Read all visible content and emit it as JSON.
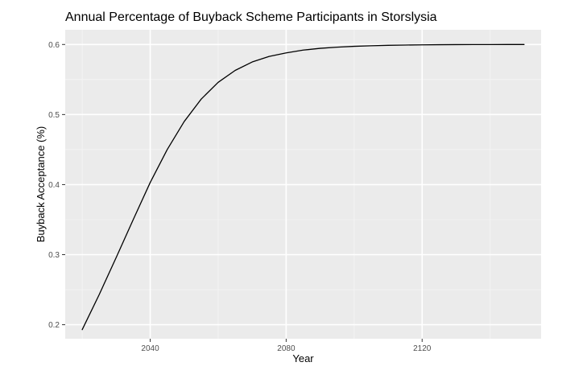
{
  "chart_data": {
    "type": "line",
    "title": "Annual Percentage of Buyback Scheme Participants in Storslysia",
    "xlabel": "Year",
    "ylabel": "Buyback Acceptance (%)",
    "xlim": [
      2015,
      2155
    ],
    "ylim": [
      0.18,
      0.621
    ],
    "xticks": [
      2040,
      2080,
      2120
    ],
    "xtick_labels": [
      "2040",
      "2080",
      "2120"
    ],
    "yticks": [
      0.2,
      0.3,
      0.4,
      0.5,
      0.6
    ],
    "ytick_labels": [
      "0.2",
      "0.3",
      "0.4",
      "0.5",
      "0.6"
    ],
    "grid": true,
    "legend": "none",
    "series": [
      {
        "color": "#000000",
        "x": [
          2020,
          2025,
          2030,
          2035,
          2040,
          2045,
          2050,
          2055,
          2060,
          2065,
          2070,
          2075,
          2080,
          2085,
          2090,
          2095,
          2100,
          2105,
          2110,
          2115,
          2120,
          2125,
          2130,
          2135,
          2140,
          2145,
          2150
        ],
        "y": [
          0.193,
          0.243,
          0.296,
          0.35,
          0.403,
          0.45,
          0.49,
          0.522,
          0.546,
          0.563,
          0.575,
          0.583,
          0.588,
          0.592,
          0.5945,
          0.5962,
          0.5974,
          0.5982,
          0.5988,
          0.5992,
          0.5995,
          0.5997,
          0.5998,
          0.5999,
          0.5999,
          0.6,
          0.6
        ]
      }
    ]
  },
  "colors": {
    "panel_background": "#ebebeb",
    "grid_major": "#ffffff",
    "grid_minor": "#f5f5f5",
    "tick_label": "#4d4d4d",
    "line": "#000000"
  }
}
